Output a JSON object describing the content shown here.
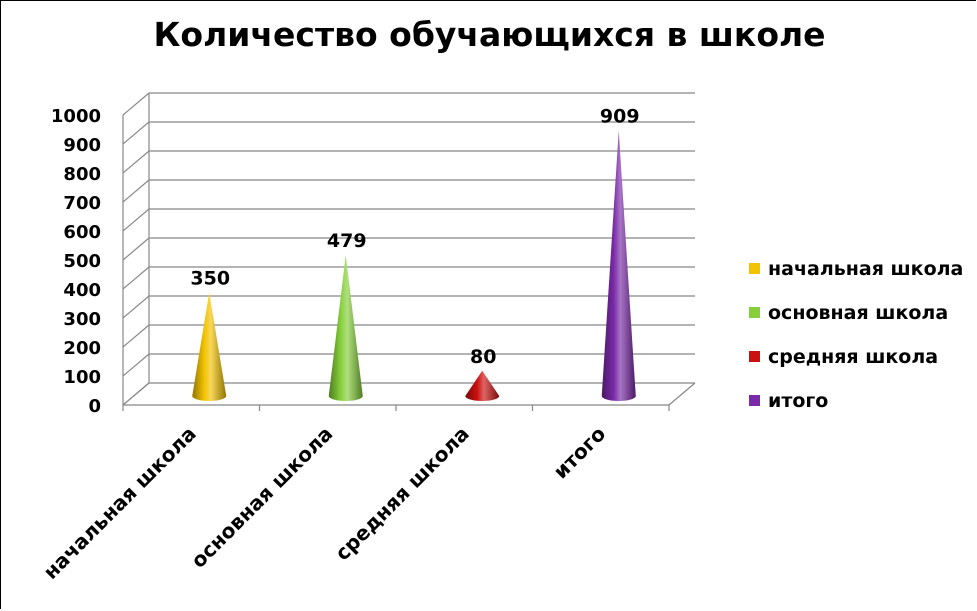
{
  "chart_data": {
    "type": "bar",
    "title": "Количество обучающихся в школе",
    "categories": [
      "начальная школа",
      "основная школа",
      "средняя школа",
      "итого"
    ],
    "values": [
      350,
      479,
      80,
      909
    ],
    "colors": [
      "#f2c200",
      "#86cf3a",
      "#cc1010",
      "#7a2aa8"
    ],
    "ylim": [
      0,
      1000
    ],
    "yticks": [
      0,
      100,
      200,
      300,
      400,
      500,
      600,
      700,
      800,
      900,
      1000
    ],
    "legend": [
      "начальная школа",
      "основная школа",
      "средняя школа",
      "итого"
    ],
    "legend_position": "right",
    "grid": true,
    "bar_shape": "cone",
    "xlabel": "",
    "ylabel": ""
  }
}
